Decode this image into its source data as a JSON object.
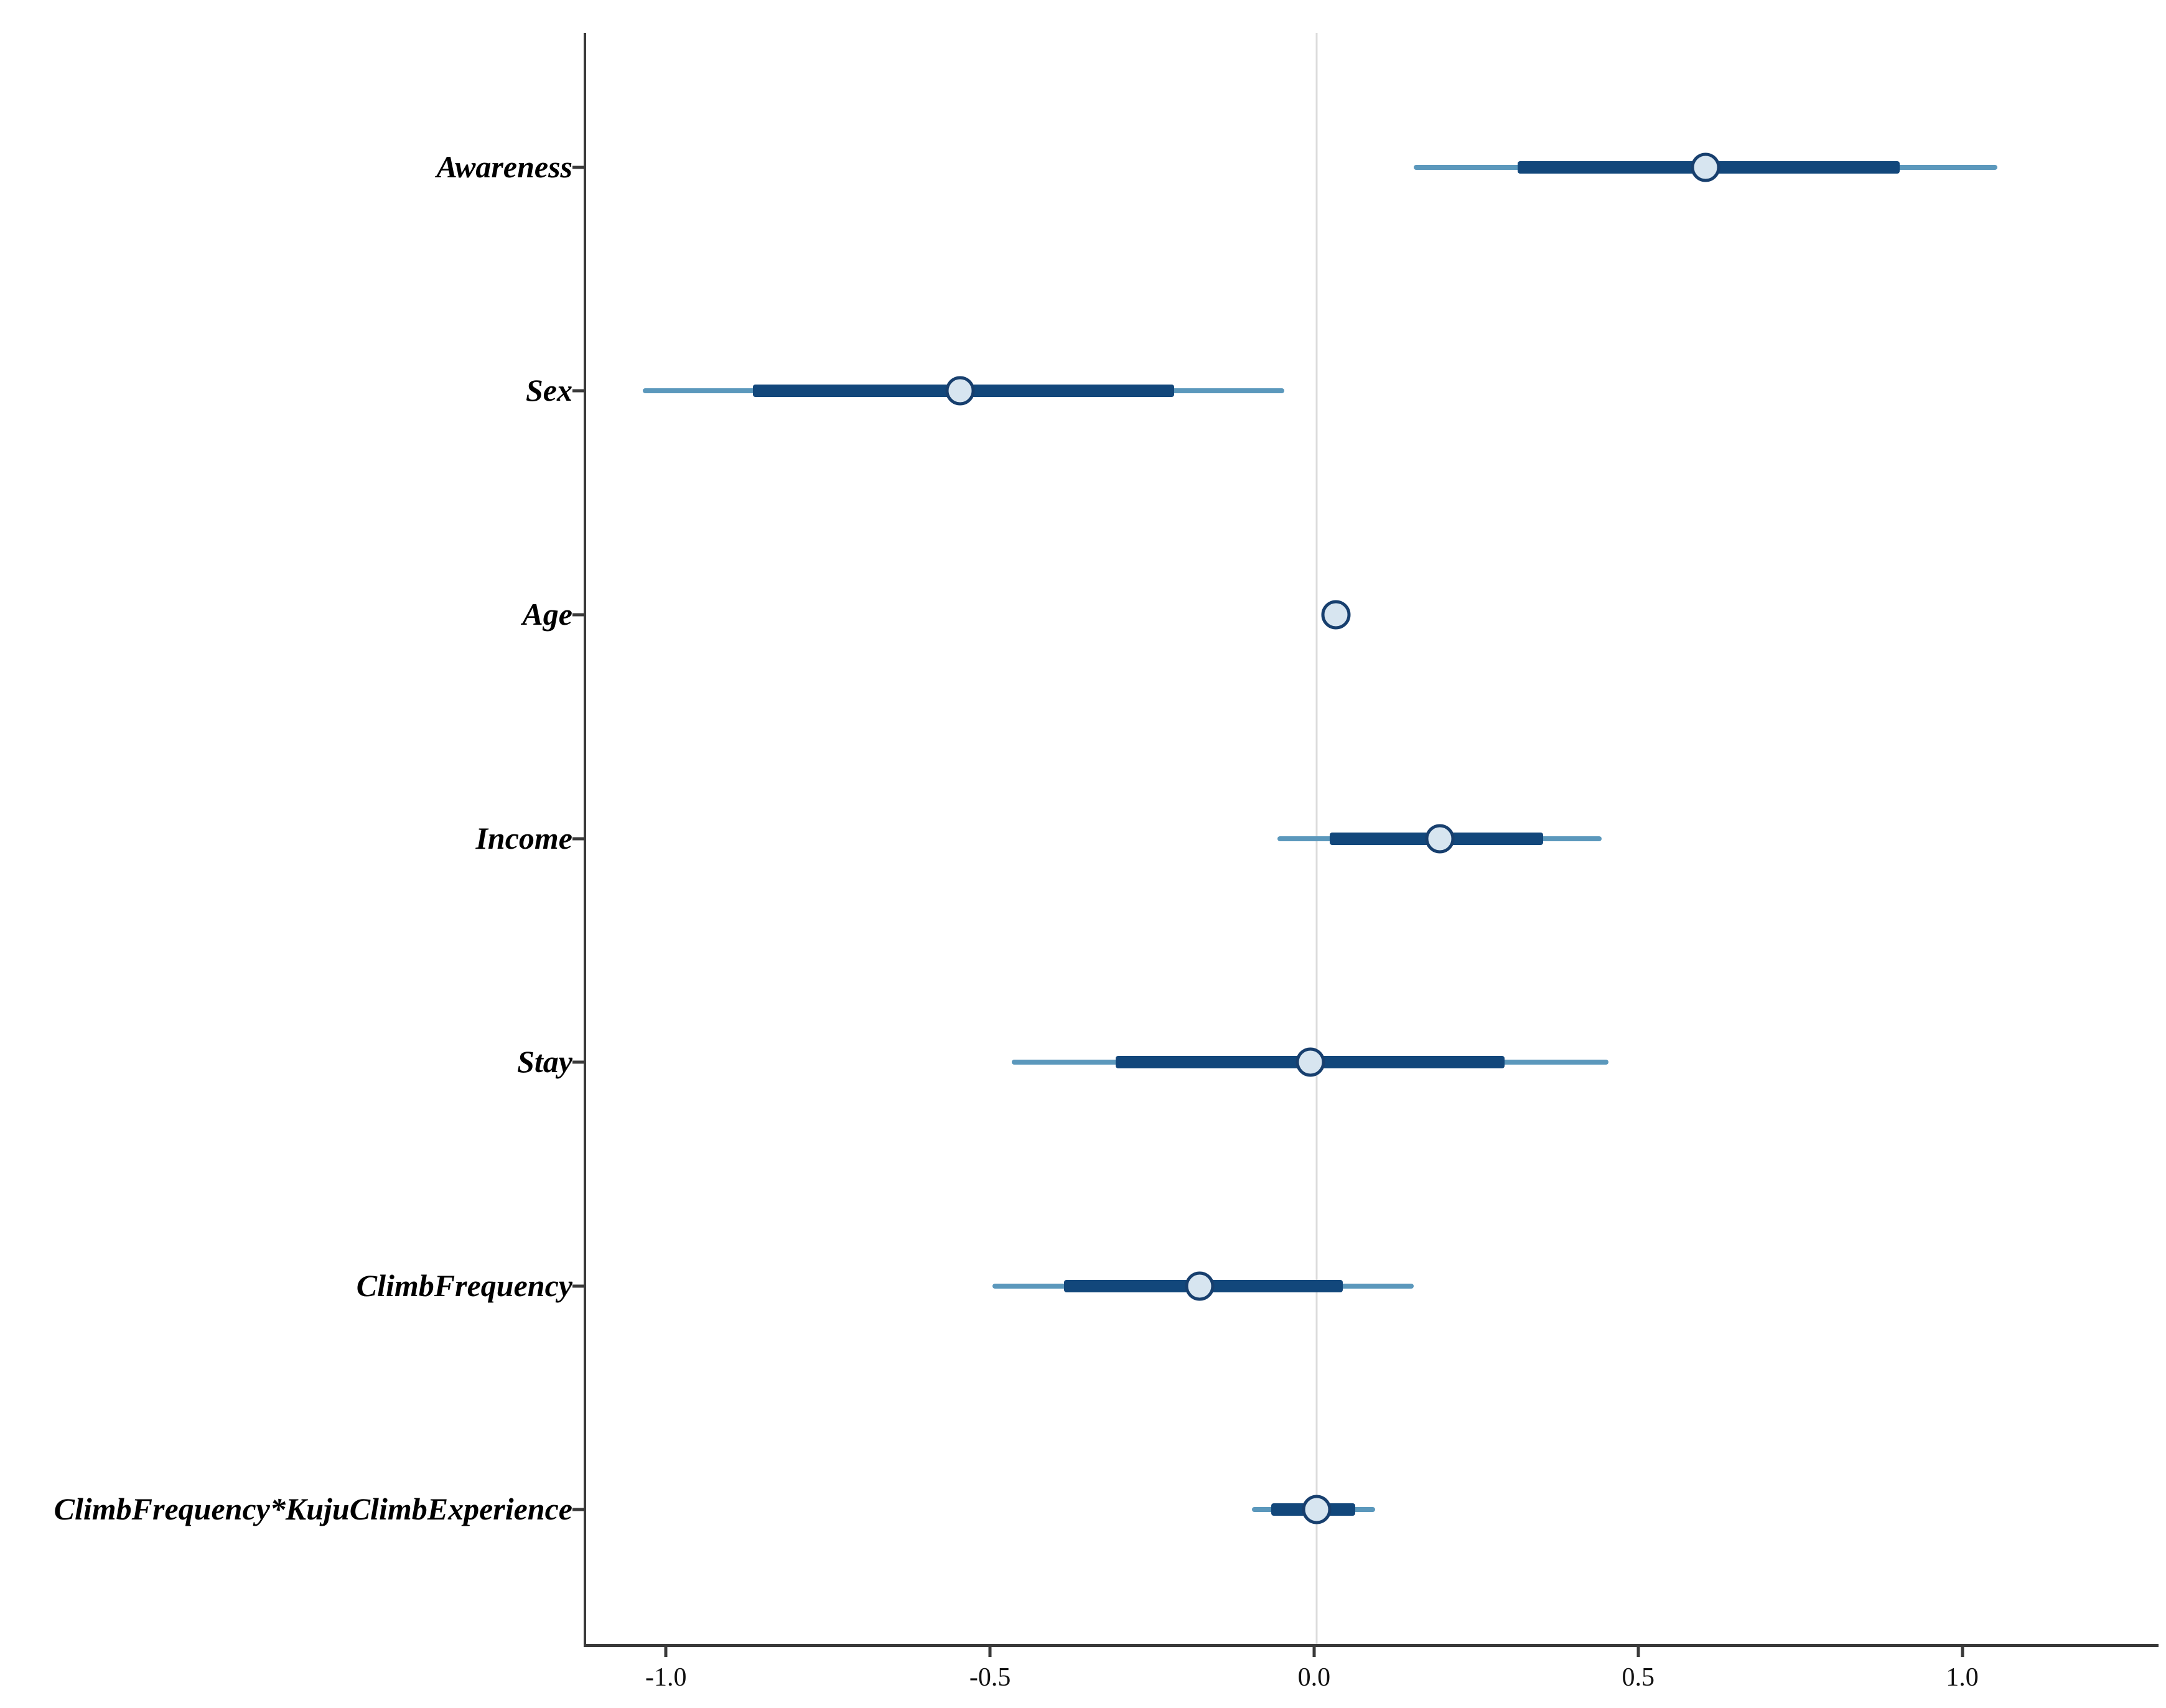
{
  "chart_data": {
    "type": "scatter",
    "subtype": "coefficient-forest-plot",
    "title": "",
    "xlabel": "",
    "ylabel": "",
    "xlim": [
      -1.127,
      1.299
    ],
    "grid": "zero-line-only",
    "zero_line": 0.0,
    "x_ticks": [
      {
        "value": -1.0,
        "label": "-1.0"
      },
      {
        "value": -0.5,
        "label": "-0.5"
      },
      {
        "value": 0.0,
        "label": "0.0"
      },
      {
        "value": 0.5,
        "label": "0.5"
      },
      {
        "value": 1.0,
        "label": "1.0"
      }
    ],
    "rows": [
      {
        "label": "Awareness",
        "estimate": 0.6,
        "inner_ci": [
          0.31,
          0.9
        ],
        "outer_ci": [
          0.15,
          1.05
        ]
      },
      {
        "label": "Sex",
        "estimate": -0.55,
        "inner_ci": [
          -0.87,
          -0.22
        ],
        "outer_ci": [
          -1.04,
          -0.05
        ]
      },
      {
        "label": "Age",
        "estimate": 0.03,
        "inner_ci": [
          0.01,
          0.05
        ],
        "outer_ci": [
          0.01,
          0.05
        ]
      },
      {
        "label": "Income",
        "estimate": 0.19,
        "inner_ci": [
          0.02,
          0.35
        ],
        "outer_ci": [
          -0.06,
          0.44
        ]
      },
      {
        "label": "Stay",
        "estimate": -0.01,
        "inner_ci": [
          -0.31,
          0.29
        ],
        "outer_ci": [
          -0.47,
          0.45
        ]
      },
      {
        "label": "ClimbFrequency",
        "estimate": -0.18,
        "inner_ci": [
          -0.39,
          0.04
        ],
        "outer_ci": [
          -0.5,
          0.15
        ]
      },
      {
        "label": "ClimbFrequency*KujuClimbExperience",
        "estimate": 0.0,
        "inner_ci": [
          -0.07,
          0.06
        ],
        "outer_ci": [
          -0.1,
          0.09
        ]
      }
    ],
    "legend": null,
    "colors": {
      "inner_ci_bar": "#12477b",
      "outer_ci_line": "#5b98bc",
      "point_fill": "#d7e5f0",
      "point_border": "#173f6e",
      "axis_line": "#3a3a3a",
      "zero_gridline": "#dcdcdc",
      "label_text": "#000000",
      "tick_text": "#111111",
      "background": "#ffffff"
    }
  }
}
